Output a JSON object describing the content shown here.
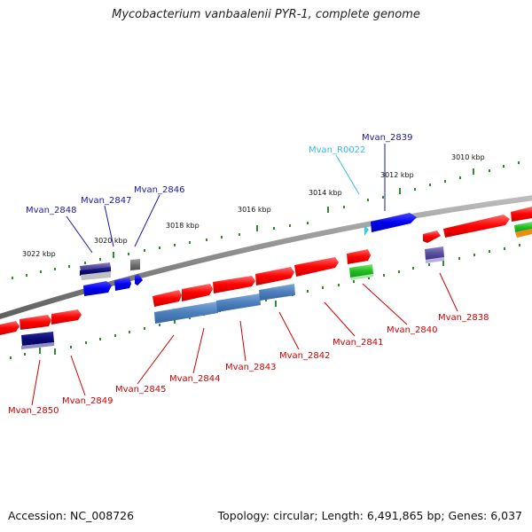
{
  "title": "Mycobacterium vanbaalenii PYR-1, complete genome",
  "footer": {
    "accession": "Accession: NC_008726",
    "info": "Topology: circular; Length: 6,491,865 bp; Genes: 6,037"
  },
  "scale_labels": [
    "3022 kbp",
    "3020 kbp",
    "3018 kbp",
    "3016 kbp",
    "3014 kbp",
    "3012 kbp",
    "3010 kbp"
  ],
  "gene_labels": {
    "mvan_2848": "Mvan_2848",
    "mvan_2847": "Mvan_2847",
    "mvan_2846": "Mvan_2846",
    "mvan_r0022": "Mvan_R0022",
    "mvan_2839": "Mvan_2839",
    "mvan_2850": "Mvan_2850",
    "mvan_2849": "Mvan_2849",
    "mvan_2845": "Mvan_2845",
    "mvan_2844": "Mvan_2844",
    "mvan_2843": "Mvan_2843",
    "mvan_2842": "Mvan_2842",
    "mvan_2841": "Mvan_2841",
    "mvan_2840": "Mvan_2840",
    "mvan_2838": "Mvan_2838"
  },
  "colors": {
    "backbone": "#8a8a8a",
    "tick": "#2e8b2e",
    "forward_gene": "#ff1a1a",
    "reverse_gene": "#1010ee",
    "label_red": "#cc0000",
    "label_blue": "#1a1aa0",
    "label_cyan": "#33bbee"
  }
}
